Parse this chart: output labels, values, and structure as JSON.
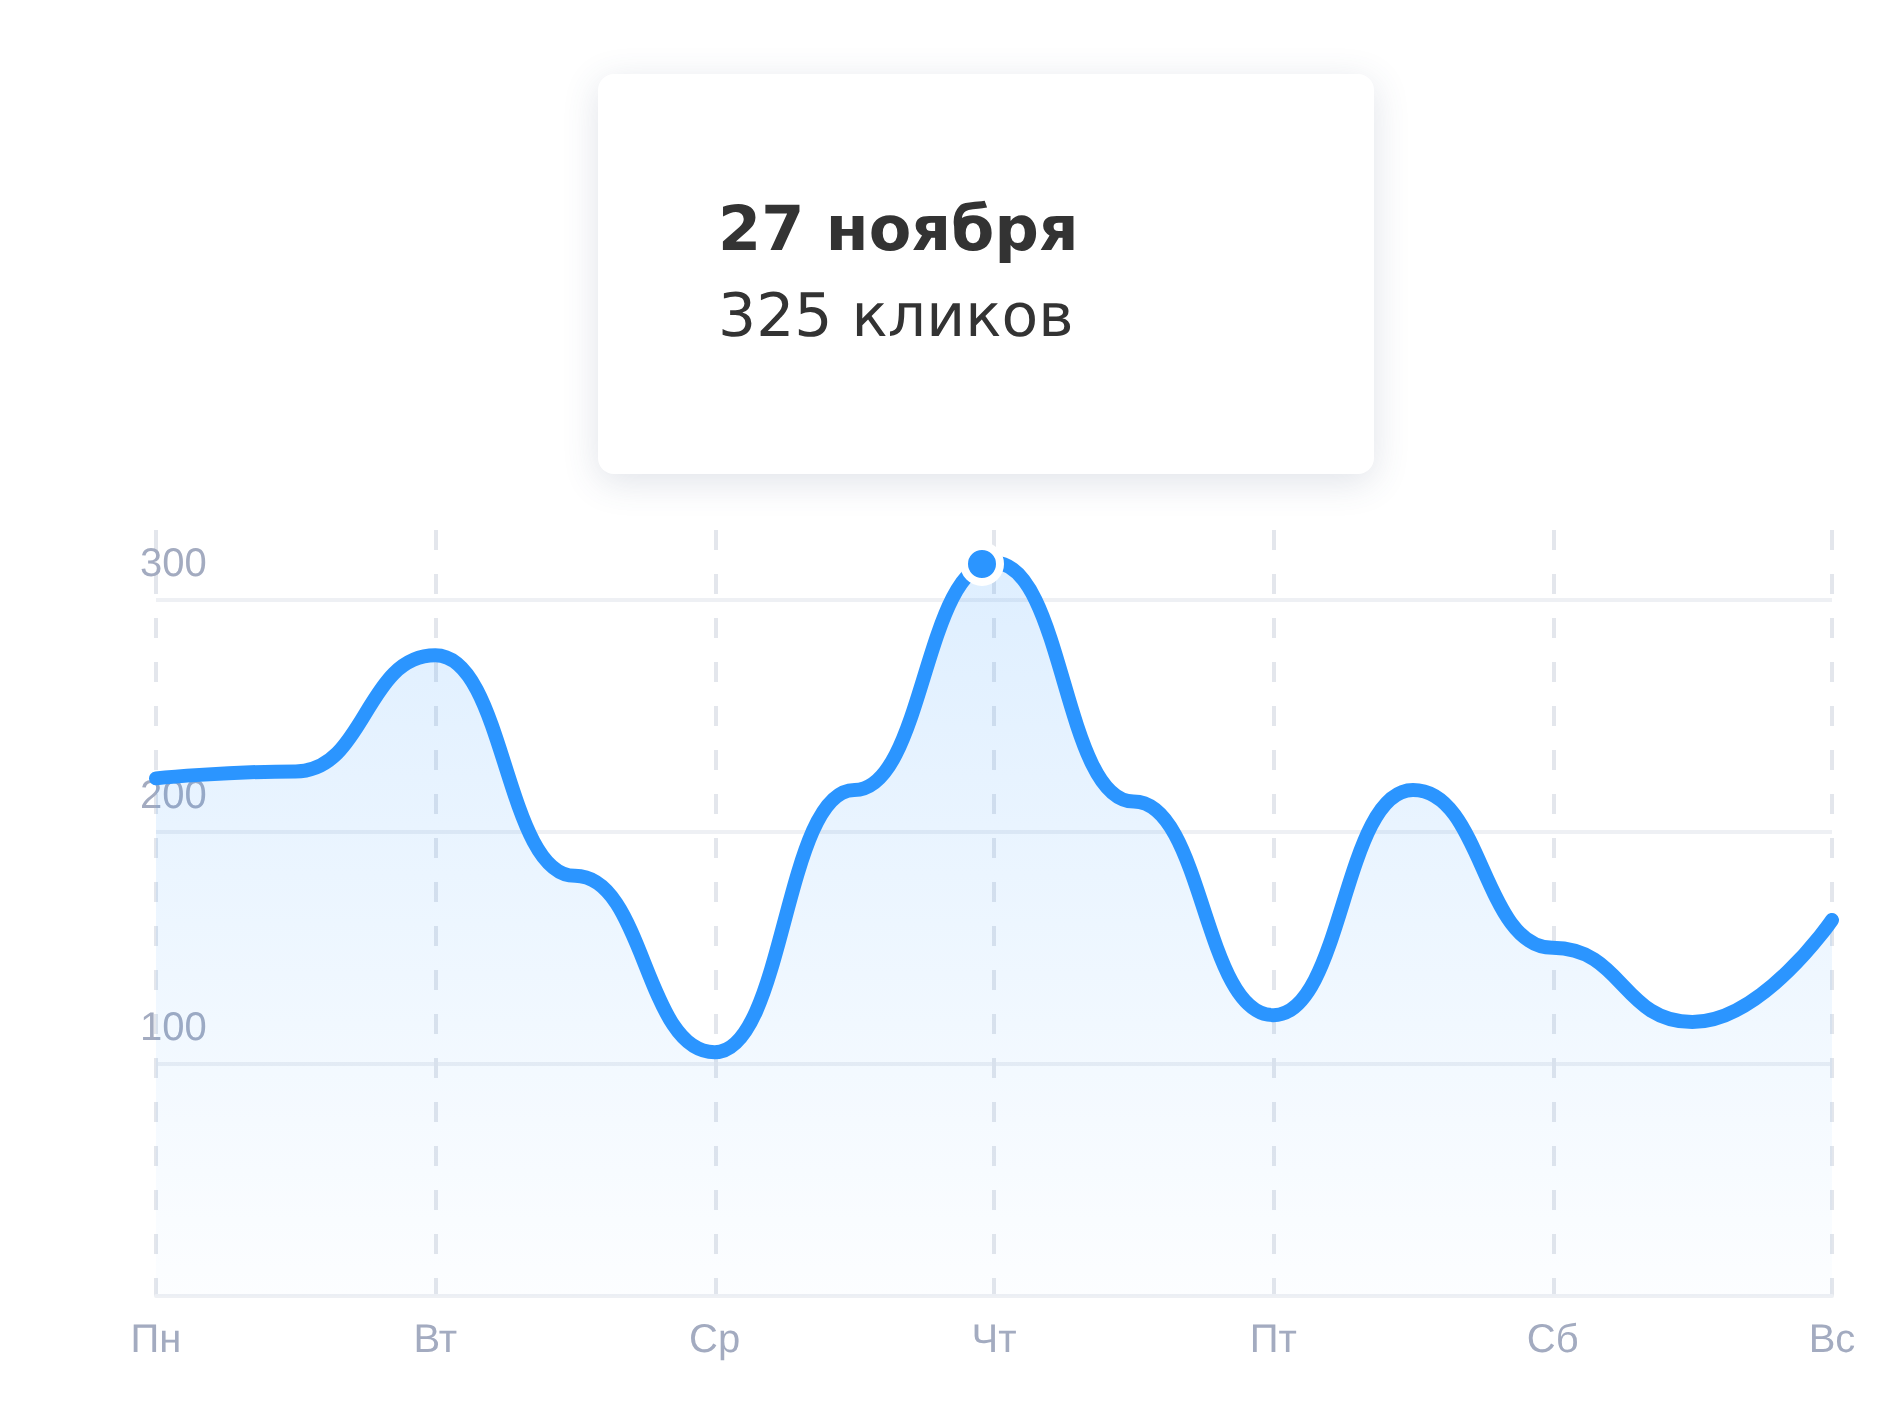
{
  "chart_data": {
    "type": "area",
    "categories": [
      "Пн",
      null,
      "Вт",
      null,
      "Ср",
      null,
      "Чт",
      null,
      "Пт",
      null,
      "Сб",
      null,
      "Вс"
    ],
    "series": [
      {
        "color": "#2b95ff",
        "values": [
          223,
          226,
          276,
          181,
          105,
          218,
          316,
          213,
          121,
          218,
          150,
          118,
          162
        ]
      }
    ],
    "ylim": [
      0,
      330
    ],
    "yticks": [
      100,
      200,
      300
    ],
    "grid": true,
    "marker": "none",
    "line_style": "solid",
    "annotations": [
      "27 ноября",
      "325 кликов"
    ]
  }
}
